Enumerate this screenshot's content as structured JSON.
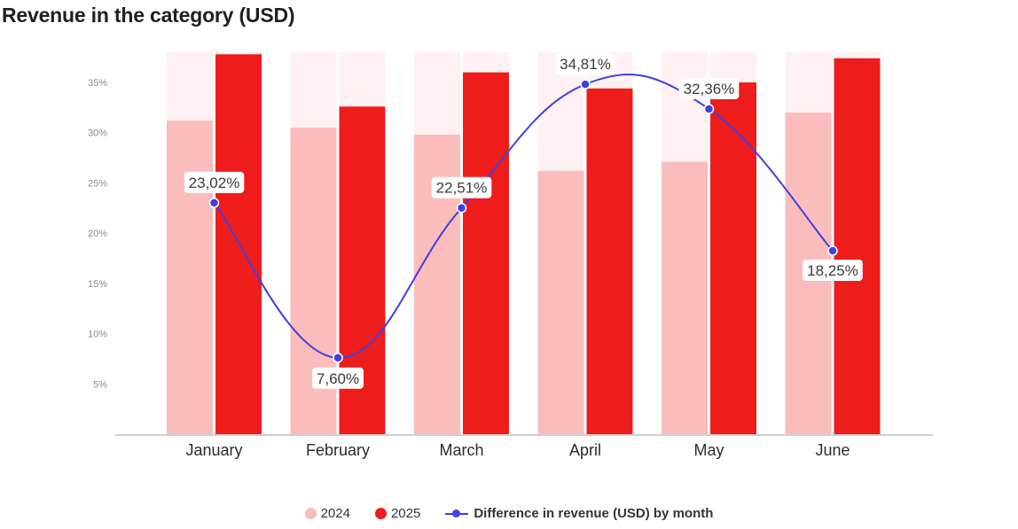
{
  "title": "Revenue in the category (USD)",
  "colors": {
    "bar_2024": "#fbbcbc",
    "bar_2025": "#ef1c1c",
    "bar_background": "#fff1f1",
    "line": "#4040e0",
    "axis": "#cfcfcf"
  },
  "legend": {
    "s2024": "2024",
    "s2025": "2025",
    "line": "Difference in revenue (USD) by month"
  },
  "chart_data": {
    "type": "bar",
    "categories": [
      "January",
      "February",
      "March",
      "April",
      "May",
      "June"
    ],
    "ylim": [
      0,
      38
    ],
    "yticks": [
      5,
      10,
      15,
      20,
      25,
      30,
      35
    ],
    "ytick_labels": [
      "5%",
      "10%",
      "15%",
      "20%",
      "25%",
      "30%",
      "35%"
    ],
    "grid": false,
    "legend_position": "bottom",
    "series": [
      {
        "name": "2024",
        "type": "bar",
        "values": [
          31.2,
          30.5,
          29.8,
          26.2,
          27.1,
          32.0
        ]
      },
      {
        "name": "2025",
        "type": "bar",
        "values": [
          37.8,
          32.6,
          36.0,
          34.4,
          35.0,
          37.4
        ]
      },
      {
        "name": "Difference in revenue (USD) by month",
        "type": "line",
        "values": [
          23.02,
          7.6,
          22.51,
          34.81,
          32.36,
          18.25
        ],
        "labels": [
          "23,02%",
          "7,60%",
          "22,51%",
          "34,81%",
          "32,36%",
          "18,25%"
        ]
      }
    ]
  }
}
